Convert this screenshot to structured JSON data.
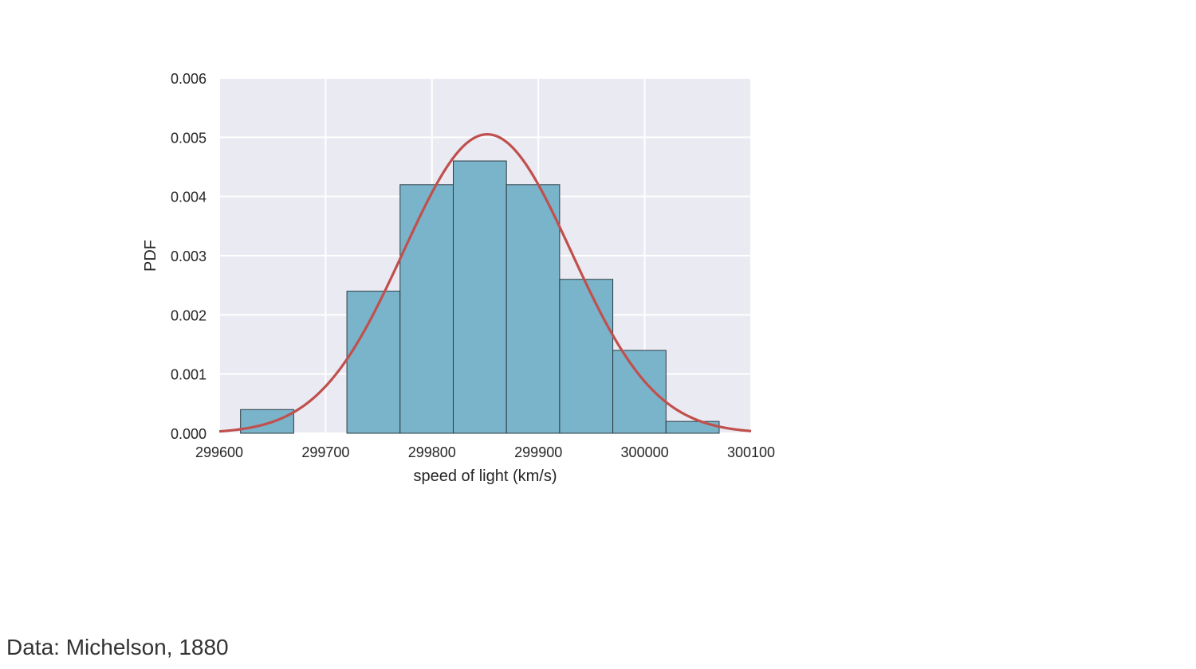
{
  "caption": "Data: Michelson, 1880",
  "chart_data": {
    "type": "bar",
    "subtype": "histogram-with-fitted-curve",
    "title": "",
    "xlabel": "speed of light (km/s)",
    "ylabel": "PDF",
    "xlim": [
      299600,
      300100
    ],
    "ylim": [
      0,
      0.006
    ],
    "xticks": [
      299600,
      299700,
      299800,
      299900,
      300000,
      300100
    ],
    "xtick_labels": [
      "299600",
      "299700",
      "299800",
      "299900",
      "300000",
      "300100"
    ],
    "yticks": [
      0.0,
      0.001,
      0.002,
      0.003,
      0.004,
      0.005,
      0.006
    ],
    "ytick_labels": [
      "0.000",
      "0.001",
      "0.002",
      "0.003",
      "0.004",
      "0.005",
      "0.006"
    ],
    "grid": true,
    "bins": [
      {
        "x0": 299620,
        "x1": 299670,
        "value": 0.0004
      },
      {
        "x0": 299670,
        "x1": 299720,
        "value": 0.0
      },
      {
        "x0": 299720,
        "x1": 299770,
        "value": 0.0024
      },
      {
        "x0": 299770,
        "x1": 299820,
        "value": 0.0042
      },
      {
        "x0": 299820,
        "x1": 299870,
        "value": 0.0046
      },
      {
        "x0": 299870,
        "x1": 299920,
        "value": 0.0042
      },
      {
        "x0": 299920,
        "x1": 299970,
        "value": 0.0026
      },
      {
        "x0": 299970,
        "x1": 300020,
        "value": 0.0014
      },
      {
        "x0": 300020,
        "x1": 300070,
        "value": 0.0002
      }
    ],
    "curve": {
      "type": "normal-pdf",
      "mean": 299852,
      "std": 79
    },
    "colors": {
      "bar_fill": "#79b4ca",
      "bar_edge": "#2b3a42",
      "curve": "#c0504d",
      "plot_background": "#eaeaf2",
      "grid": "#ffffff"
    }
  }
}
